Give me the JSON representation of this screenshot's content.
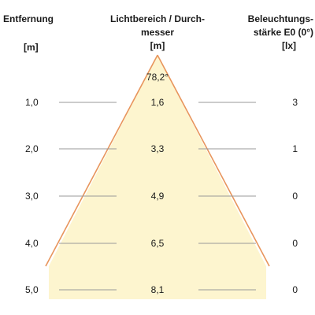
{
  "headers": {
    "distance": "Entfernung",
    "distance_unit": "[m]",
    "diameter_line1": "Lichtbereich / Durch-",
    "diameter_line2": "messer",
    "diameter_unit": "[m]",
    "illum_line1": "Beleuchtungs-",
    "illum_line2": "stärke E0 (0°)",
    "illum_unit": "[lx]"
  },
  "beam_angle": "78,2°",
  "colors": {
    "beam_fill": "#fdf5cf",
    "beam_edge": "#e8955c",
    "guide_line": "#999999"
  },
  "rows": [
    {
      "distance": "1,0",
      "diameter": "1,6",
      "illuminance": "3"
    },
    {
      "distance": "2,0",
      "diameter": "3,3",
      "illuminance": "1"
    },
    {
      "distance": "3,0",
      "diameter": "4,9",
      "illuminance": "0"
    },
    {
      "distance": "4,0",
      "diameter": "6,5",
      "illuminance": "0"
    },
    {
      "distance": "5,0",
      "diameter": "8,1",
      "illuminance": "0"
    }
  ]
}
